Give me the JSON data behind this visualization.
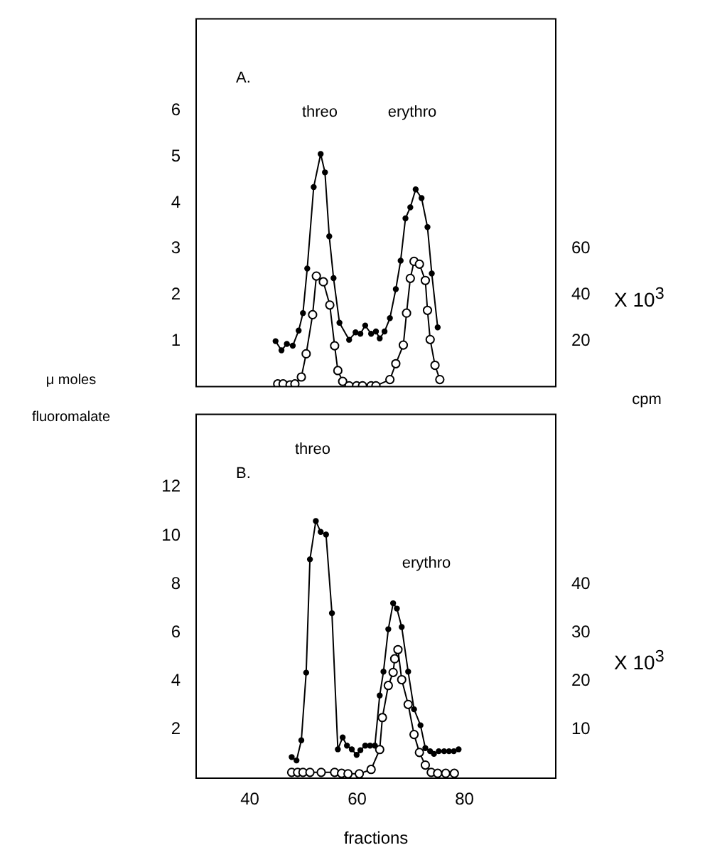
{
  "chart_data": [
    {
      "type": "line",
      "title": "A.",
      "ylabel": "μ moles fluoromalate",
      "y2label": "X 10$^{3}$",
      "xlim": [
        30,
        97
      ],
      "xticks": [
        40,
        60,
        80
      ],
      "ylim": [
        0,
        8
      ],
      "yticks": [
        1,
        2,
        3,
        4,
        5,
        6
      ],
      "y2lim": [
        0,
        160
      ],
      "y2ticks": [
        20,
        40,
        60
      ],
      "tick_labels": "y",
      "marker": "circle",
      "grid": false,
      "legend": false,
      "annotations": [
        "threo",
        "erythro",
        "cpm"
      ],
      "series": [
        {
          "color": "#000000",
          "x": [
            44.8,
            45.9,
            46.9,
            48.0,
            49.1,
            49.9,
            50.7,
            51.9,
            53.2,
            54.0,
            54.8,
            55.6,
            56.7,
            58.5,
            59.7,
            60.6,
            61.5,
            62.6,
            63.5,
            64.2,
            65.1,
            66.1,
            67.2,
            68.1,
            69.0,
            69.9,
            70.9,
            72.0,
            73.1,
            73.9,
            75.0
          ],
          "values": [
            0.99,
            0.79,
            0.93,
            0.89,
            1.22,
            1.6,
            2.57,
            4.34,
            5.06,
            4.66,
            3.27,
            2.36,
            1.39,
            1.02,
            1.18,
            1.15,
            1.33,
            1.15,
            1.2,
            1.05,
            1.2,
            1.49,
            2.12,
            2.74,
            3.66,
            3.9,
            4.29,
            4.1,
            3.47,
            2.46,
            1.29
          ]
        },
        {
          "color": "#000000",
          "axis": "y2",
          "x": [
            45.2,
            46.2,
            47.5,
            48.4,
            49.6,
            50.5,
            51.7,
            52.4,
            53.7,
            54.9,
            55.8,
            56.4,
            57.3,
            58.5,
            59.9,
            61.0,
            62.6,
            63.5,
            66.1,
            67.2,
            68.6,
            69.2,
            69.9,
            70.6,
            71.6,
            72.7,
            73.1,
            73.6,
            74.5,
            75.4
          ],
          "values": [
            1.2,
            1.2,
            0.8,
            1.2,
            4.2,
            14.3,
            31.3,
            48.1,
            45.6,
            35.5,
            17.8,
            7,
            2.3,
            0.4,
            0.4,
            0.4,
            0.4,
            0.4,
            3.1,
            10,
            18.1,
            32,
            47.1,
            54.5,
            53.3,
            46.2,
            33.2,
            20.5,
            9.3,
            3.1
          ]
        }
      ]
    },
    {
      "type": "line",
      "title": "B.",
      "xlabel": "fractions",
      "y2label": "X 10$^{3}$",
      "xlim": [
        30,
        97
      ],
      "xticks": [
        40,
        60,
        80
      ],
      "ylim": [
        0,
        15
      ],
      "yticks": [
        2,
        4,
        6,
        8,
        10,
        12
      ],
      "y2lim": [
        0,
        75
      ],
      "y2ticks": [
        10,
        20,
        30,
        40
      ],
      "marker": "circle",
      "grid": false,
      "legend": false,
      "annotations": [
        "threo",
        "erythro"
      ],
      "series": [
        {
          "color": "#000000",
          "x": [
            47.8,
            48.7,
            49.6,
            50.5,
            51.2,
            52.3,
            53.2,
            54.2,
            55.3,
            56.4,
            57.3,
            58.1,
            59.0,
            59.9,
            60.6,
            61.5,
            62.4,
            63.3,
            64.2,
            64.9,
            65.8,
            66.7,
            67.4,
            68.3,
            69.5,
            70.6,
            71.8,
            72.7,
            73.6,
            74.3,
            75.2,
            76.2,
            77.1,
            78.0,
            78.9
          ],
          "values": [
            0.87,
            0.73,
            1.56,
            4.35,
            9.02,
            10.6,
            10.15,
            10.04,
            6.8,
            1.19,
            1.68,
            1.34,
            1.19,
            0.96,
            1.15,
            1.34,
            1.34,
            1.34,
            3.41,
            4.39,
            6.14,
            7.21,
            6.99,
            6.23,
            4.39,
            2.84,
            2.18,
            1.24,
            1.11,
            1.0,
            1.11,
            1.11,
            1.11,
            1.11,
            1.19
          ]
        },
        {
          "color": "#000000",
          "axis": "y2",
          "x": [
            47.8,
            48.9,
            49.9,
            51.2,
            53.3,
            55.8,
            57.1,
            58.3,
            60.4,
            62.6,
            64.2,
            64.7,
            65.8,
            66.7,
            67.0,
            67.6,
            68.3,
            69.5,
            70.6,
            71.6,
            72.7,
            73.8,
            75.0,
            76.5,
            78.1
          ],
          "values": [
            1.2,
            1.2,
            1.2,
            1.2,
            1.2,
            1.2,
            1.0,
            0.9,
            0.9,
            1.8,
            5.9,
            12.5,
            19.1,
            21.8,
            24.6,
            26.5,
            20.3,
            15.2,
            9.0,
            5.3,
            2.7,
            1.2,
            1.0,
            1.0,
            1.0
          ]
        }
      ]
    }
  ]
}
